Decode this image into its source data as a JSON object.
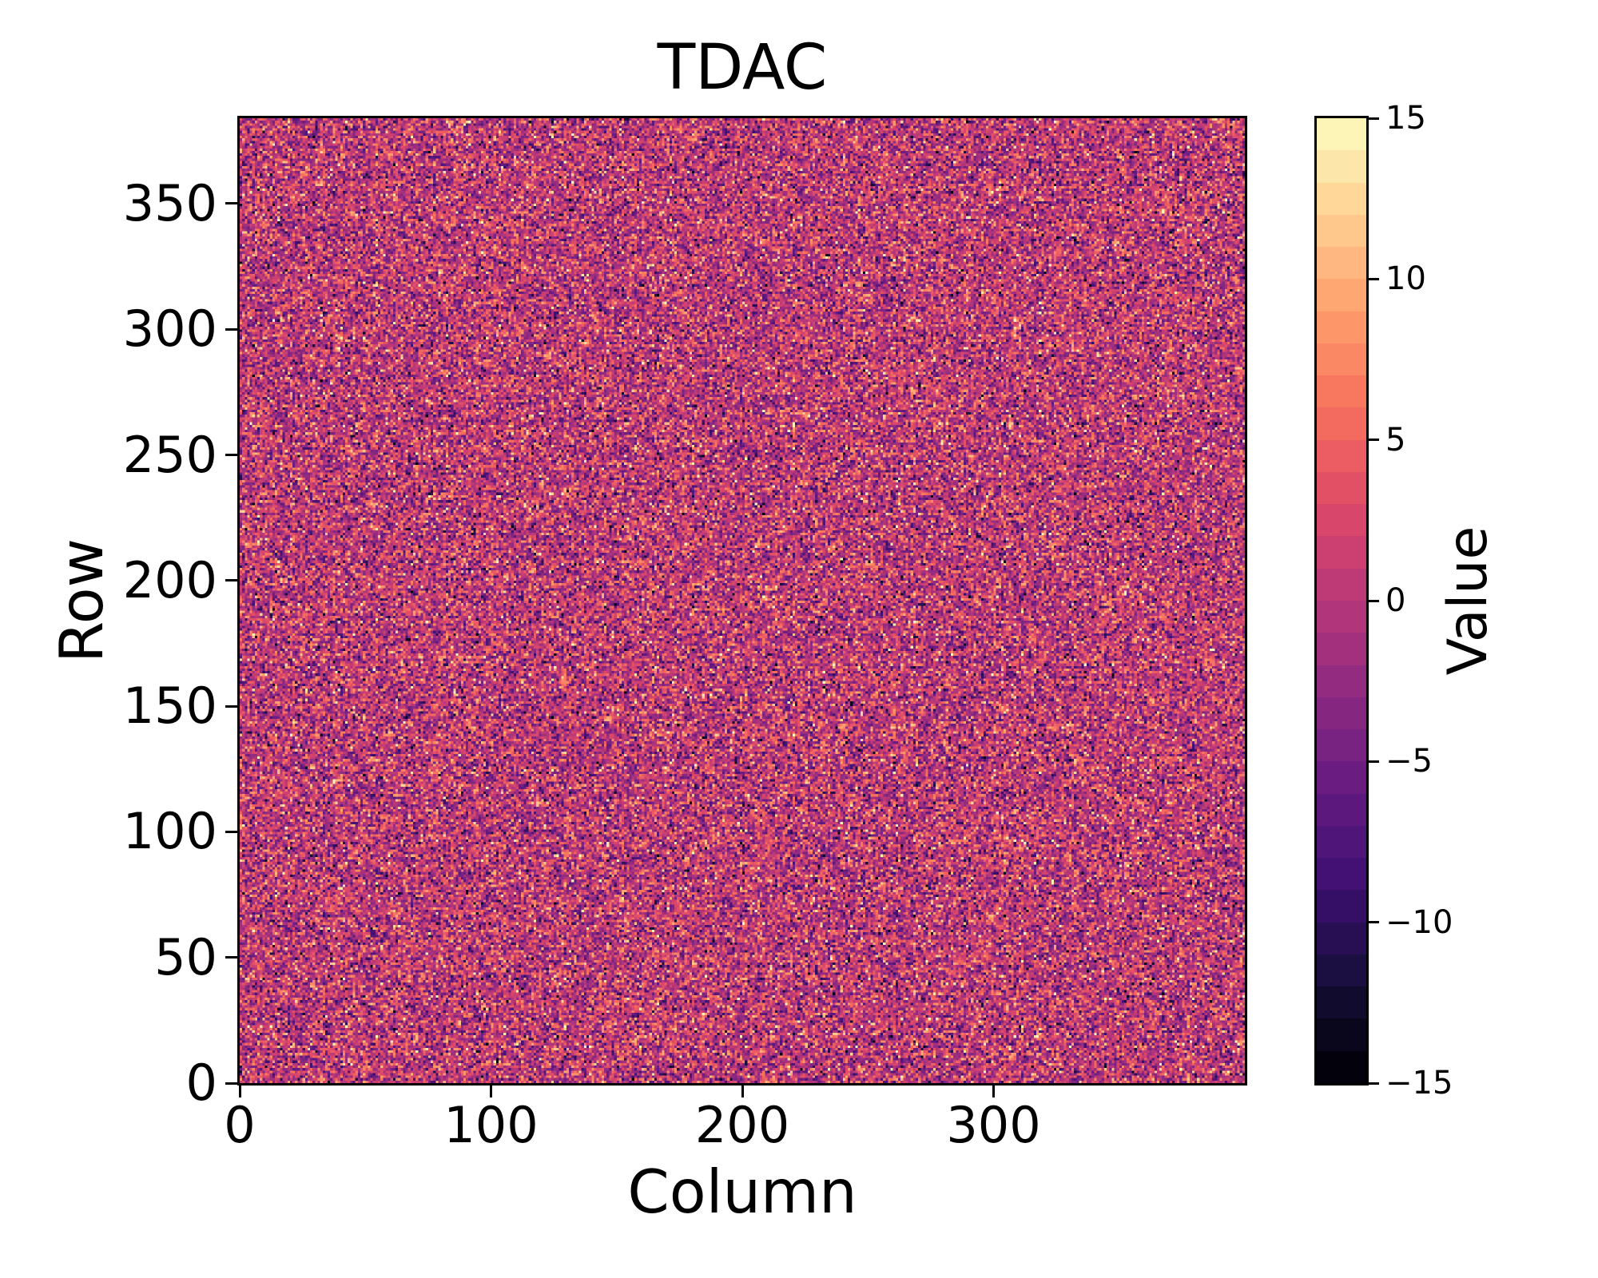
{
  "title": "TDAC",
  "axes": {
    "xlabel": "Column",
    "ylabel": "Row",
    "x_tick_labels": [
      "0",
      "100",
      "200",
      "300"
    ],
    "y_tick_labels": [
      "0",
      "50",
      "100",
      "150",
      "200",
      "250",
      "300",
      "350"
    ]
  },
  "colorbar": {
    "label": "Value",
    "tick_labels": [
      "15",
      "10",
      "5",
      "0",
      "−5",
      "−10",
      "−15"
    ],
    "tick_values": [
      15,
      10,
      5,
      0,
      -5,
      -10,
      -15
    ]
  },
  "chart_data": {
    "type": "heatmap",
    "title": "TDAC",
    "xlabel": "Column",
    "ylabel": "Row",
    "value_label": "Value",
    "n_cols": 400,
    "n_rows": 384,
    "x_range": [
      0,
      400
    ],
    "y_range": [
      0,
      384
    ],
    "x_tick_values": [
      0,
      100,
      200,
      300
    ],
    "y_tick_values": [
      0,
      50,
      100,
      150,
      200,
      250,
      300,
      350
    ],
    "value_range": [
      -15,
      15
    ],
    "colorbar_tick_values": [
      15,
      10,
      5,
      0,
      -5,
      -10,
      -15
    ],
    "values_description": "Per-pixel integer trim-DAC values; unstructured noise, approximately round(Normal(mean 0, sigma 5)) clipped to [-15, 15], uniformly scattered over all 400x384 pixels",
    "generator": {
      "distribution": "gaussian",
      "mean": 0,
      "sigma": 5,
      "round_to_int": true,
      "clip": [
        -15,
        15
      ],
      "seed": 1337
    },
    "colormap": {
      "name": "magma",
      "discrete_bands": 30,
      "grid": false,
      "legend_position": "right-colorbar",
      "anchors": [
        [
          0,
          0,
          4
        ],
        [
          20,
          14,
          54
        ],
        [
          59,
          15,
          112
        ],
        [
          100,
          26,
          128
        ],
        [
          140,
          41,
          129
        ],
        [
          183,
          55,
          121
        ],
        [
          222,
          73,
          104
        ],
        [
          247,
          112,
          92
        ],
        [
          254,
          159,
          109
        ],
        [
          254,
          207,
          146
        ],
        [
          252,
          253,
          191
        ]
      ]
    }
  }
}
